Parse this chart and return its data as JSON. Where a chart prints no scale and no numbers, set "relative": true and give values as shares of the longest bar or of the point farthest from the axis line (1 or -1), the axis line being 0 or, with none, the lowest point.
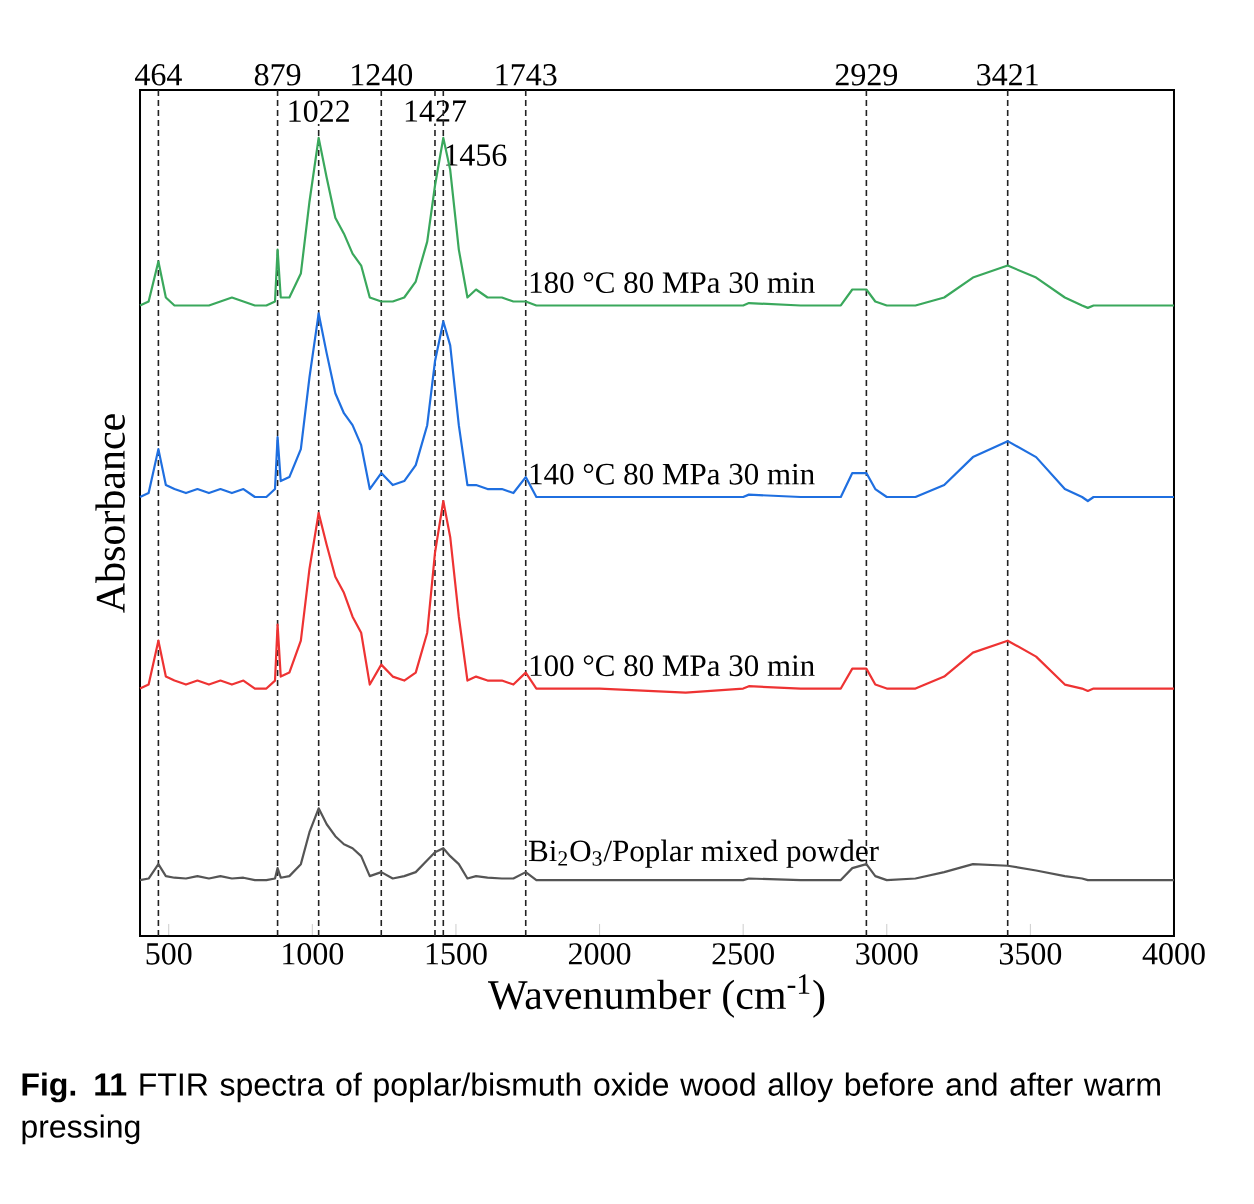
{
  "chart_data": {
    "type": "line",
    "relative": true,
    "xlabel": "Wavenumber (cm$^{-1}$)",
    "ylabel": "Absorbance",
    "xlim": [
      400,
      4000
    ],
    "xticks": [
      500,
      1000,
      1500,
      2000,
      2500,
      3000,
      3500,
      4000
    ],
    "x": [
      400,
      430,
      464,
      490,
      520,
      560,
      600,
      640,
      680,
      720,
      760,
      800,
      840,
      870,
      879,
      890,
      920,
      960,
      990,
      1022,
      1050,
      1080,
      1110,
      1140,
      1170,
      1200,
      1240,
      1280,
      1320,
      1360,
      1400,
      1427,
      1456,
      1480,
      1510,
      1540,
      1570,
      1610,
      1660,
      1700,
      1743,
      1780,
      2000,
      2300,
      2500,
      2520,
      2700,
      2840,
      2880,
      2929,
      2960,
      3000,
      3100,
      3200,
      3300,
      3421,
      3520,
      3620,
      3680,
      3700,
      3720,
      3800,
      4000
    ],
    "series": [
      {
        "name": "180 °C  80 MPa  30 min",
        "color": "#3aa85c",
        "values": [
          0.79,
          0.795,
          0.845,
          0.8,
          0.79,
          0.79,
          0.79,
          0.79,
          0.795,
          0.8,
          0.795,
          0.79,
          0.79,
          0.795,
          0.86,
          0.8,
          0.8,
          0.83,
          0.92,
          1.0,
          0.95,
          0.9,
          0.88,
          0.855,
          0.84,
          0.8,
          0.795,
          0.795,
          0.8,
          0.82,
          0.87,
          0.94,
          1.0,
          0.96,
          0.86,
          0.8,
          0.81,
          0.8,
          0.8,
          0.795,
          0.795,
          0.79,
          0.79,
          0.79,
          0.79,
          0.793,
          0.79,
          0.79,
          0.81,
          0.81,
          0.795,
          0.79,
          0.79,
          0.8,
          0.825,
          0.84,
          0.825,
          0.8,
          0.79,
          0.787,
          0.79,
          0.79,
          0.79
        ]
      },
      {
        "name": "140 °C  80 MPa  30 min",
        "color": "#1f6fe0",
        "values": [
          0.55,
          0.555,
          0.61,
          0.565,
          0.56,
          0.555,
          0.56,
          0.555,
          0.56,
          0.555,
          0.56,
          0.55,
          0.55,
          0.56,
          0.625,
          0.57,
          0.575,
          0.61,
          0.7,
          0.78,
          0.73,
          0.68,
          0.655,
          0.64,
          0.615,
          0.56,
          0.58,
          0.565,
          0.57,
          0.59,
          0.64,
          0.72,
          0.77,
          0.74,
          0.64,
          0.565,
          0.565,
          0.56,
          0.56,
          0.555,
          0.575,
          0.55,
          0.55,
          0.55,
          0.55,
          0.553,
          0.55,
          0.55,
          0.58,
          0.58,
          0.56,
          0.55,
          0.55,
          0.565,
          0.6,
          0.62,
          0.6,
          0.56,
          0.55,
          0.545,
          0.55,
          0.55,
          0.55
        ]
      },
      {
        "name": "100 °C  80 MPa  30 min",
        "color": "#ee3333",
        "values": [
          0.31,
          0.315,
          0.37,
          0.325,
          0.32,
          0.315,
          0.32,
          0.315,
          0.32,
          0.315,
          0.32,
          0.31,
          0.31,
          0.32,
          0.39,
          0.325,
          0.33,
          0.37,
          0.46,
          0.53,
          0.49,
          0.45,
          0.43,
          0.4,
          0.38,
          0.315,
          0.34,
          0.325,
          0.32,
          0.33,
          0.38,
          0.48,
          0.545,
          0.5,
          0.4,
          0.32,
          0.325,
          0.32,
          0.32,
          0.315,
          0.33,
          0.31,
          0.31,
          0.305,
          0.31,
          0.313,
          0.31,
          0.31,
          0.335,
          0.335,
          0.315,
          0.31,
          0.31,
          0.325,
          0.355,
          0.37,
          0.35,
          0.315,
          0.31,
          0.307,
          0.31,
          0.31,
          0.31
        ]
      },
      {
        "name": "Bi$_{2}$O$_{3}$/Poplar mixed powder",
        "color": "#555555",
        "values": [
          0.07,
          0.072,
          0.09,
          0.075,
          0.073,
          0.072,
          0.075,
          0.072,
          0.075,
          0.072,
          0.073,
          0.07,
          0.07,
          0.072,
          0.085,
          0.073,
          0.075,
          0.09,
          0.13,
          0.16,
          0.14,
          0.125,
          0.115,
          0.11,
          0.1,
          0.075,
          0.08,
          0.072,
          0.075,
          0.08,
          0.095,
          0.105,
          0.11,
          0.1,
          0.09,
          0.072,
          0.075,
          0.073,
          0.072,
          0.072,
          0.08,
          0.07,
          0.07,
          0.07,
          0.07,
          0.072,
          0.07,
          0.07,
          0.085,
          0.09,
          0.075,
          0.07,
          0.072,
          0.08,
          0.09,
          0.088,
          0.082,
          0.075,
          0.072,
          0.07,
          0.07,
          0.07,
          0.07
        ]
      }
    ],
    "ref_lines": [
      {
        "axis": "x",
        "value": 464,
        "label": "464",
        "color": "#222222",
        "line_style": "dashed"
      },
      {
        "axis": "x",
        "value": 879,
        "label": "879",
        "color": "#222222",
        "line_style": "dashed"
      },
      {
        "axis": "x",
        "value": 1022,
        "label": "1022",
        "color": "#222222",
        "line_style": "dashed"
      },
      {
        "axis": "x",
        "value": 1240,
        "label": "1240",
        "color": "#222222",
        "line_style": "dashed"
      },
      {
        "axis": "x",
        "value": 1427,
        "label": "1427",
        "color": "#222222",
        "line_style": "dashed"
      },
      {
        "axis": "x",
        "value": 1456,
        "label": "1456",
        "color": "#222222",
        "line_style": "dashed"
      },
      {
        "axis": "x",
        "value": 1743,
        "label": "1743",
        "color": "#222222",
        "line_style": "dashed"
      },
      {
        "axis": "x",
        "value": 2929,
        "label": "2929",
        "color": "#222222",
        "line_style": "dashed"
      },
      {
        "axis": "x",
        "value": 3421,
        "label": "3421",
        "color": "#222222",
        "line_style": "dashed"
      }
    ],
    "annotations": [
      "**Fig. 11**  FTIR spectra of poplar/bismuth oxide wood alloy before and after warm pressing"
    ]
  }
}
